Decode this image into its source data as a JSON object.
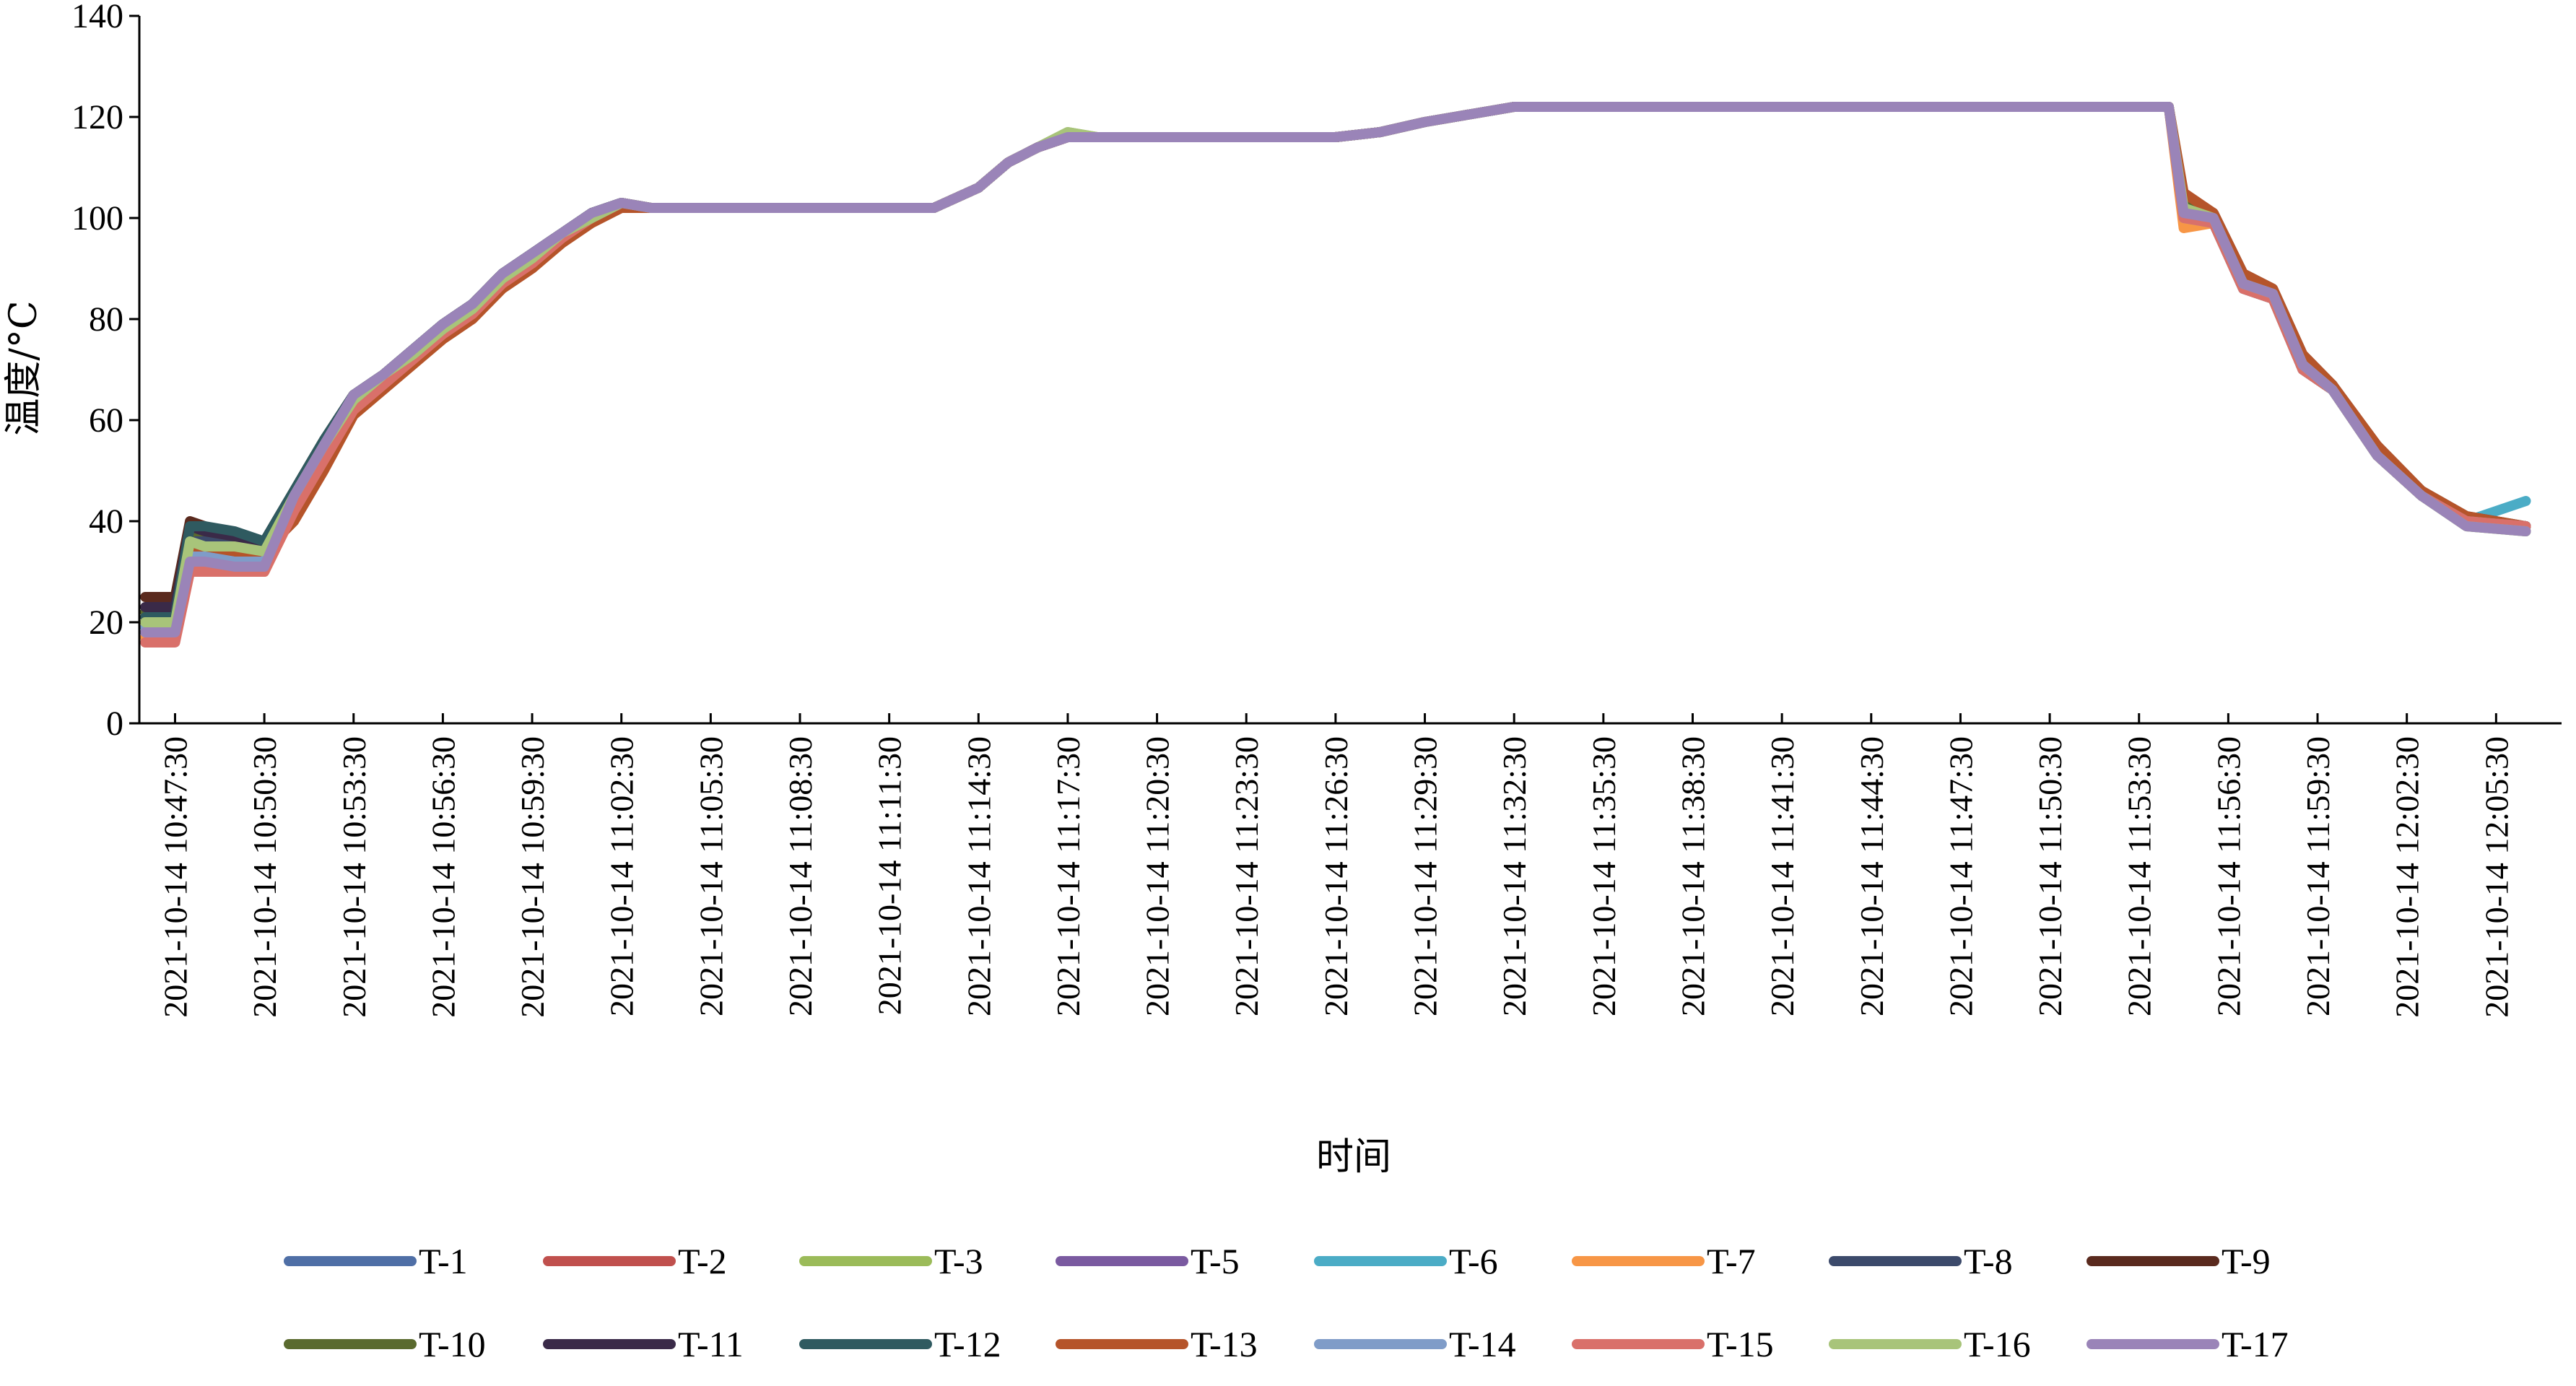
{
  "chart_data": {
    "type": "line",
    "title": "",
    "xlabel": "时间",
    "ylabel": "温度/°C",
    "ylim": [
      0,
      140
    ],
    "yticks": [
      0,
      20,
      40,
      60,
      80,
      100,
      120,
      140
    ],
    "xlim_minutes_from_first_label": [
      -1.2,
      80.2
    ],
    "grid": false,
    "legend_placement": "bottom",
    "x_tick_labels": [
      "2021-10-14 10:47:30",
      "2021-10-14 10:50:30",
      "2021-10-14 10:53:30",
      "2021-10-14 10:56:30",
      "2021-10-14 10:59:30",
      "2021-10-14 11:02:30",
      "2021-10-14 11:05:30",
      "2021-10-14 11:08:30",
      "2021-10-14 11:11:30",
      "2021-10-14 11:14:30",
      "2021-10-14 11:17:30",
      "2021-10-14 11:20:30",
      "2021-10-14 11:23:30",
      "2021-10-14 11:26:30",
      "2021-10-14 11:29:30",
      "2021-10-14 11:32:30",
      "2021-10-14 11:35:30",
      "2021-10-14 11:38:30",
      "2021-10-14 11:41:30",
      "2021-10-14 11:44:30",
      "2021-10-14 11:47:30",
      "2021-10-14 11:50:30",
      "2021-10-14 11:53:30",
      "2021-10-14 11:56:30",
      "2021-10-14 11:59:30",
      "2021-10-14 12:02:30",
      "2021-10-14 12:05:30"
    ],
    "x": [
      "10:46:30",
      "10:47:30",
      "10:48:00",
      "10:48:30",
      "10:49:30",
      "10:50:30",
      "10:51:30",
      "10:52:30",
      "10:53:30",
      "10:54:30",
      "10:55:30",
      "10:56:30",
      "10:57:30",
      "10:58:30",
      "10:59:30",
      "11:00:30",
      "11:01:30",
      "11:02:30",
      "11:03:30",
      "11:05:30",
      "11:08:30",
      "11:11:30",
      "11:13:00",
      "11:14:30",
      "11:15:30",
      "11:16:30",
      "11:17:30",
      "11:18:30",
      "11:20:30",
      "11:23:30",
      "11:26:30",
      "11:28:00",
      "11:29:30",
      "11:30:30",
      "11:32:30",
      "11:35:30",
      "11:38:30",
      "11:41:30",
      "11:44:30",
      "11:47:30",
      "11:50:30",
      "11:52:30",
      "11:53:30",
      "11:54:30",
      "11:55:00",
      "11:56:00",
      "11:57:00",
      "11:58:00",
      "11:59:00",
      "12:00:00",
      "12:01:30",
      "12:03:00",
      "12:04:30",
      "12:06:30"
    ],
    "series": [
      {
        "name": "T-1",
        "color": "#4f6fa6",
        "values": [
          19,
          19,
          31,
          32,
          32,
          32,
          45,
          55,
          64,
          69,
          73,
          78,
          82,
          88,
          92,
          97,
          100,
          103,
          102,
          102,
          102,
          102,
          102,
          106,
          111,
          114,
          116,
          116,
          116,
          116,
          116,
          117,
          119,
          120,
          122,
          122,
          122,
          122,
          122,
          122,
          122,
          122,
          122,
          122,
          100,
          99,
          86,
          84,
          70,
          66,
          53,
          45,
          40,
          39
        ]
      },
      {
        "name": "T-2",
        "color": "#c0504d",
        "values": [
          17,
          17,
          30,
          30,
          30,
          30,
          42,
          52,
          62,
          67,
          72,
          77,
          81,
          87,
          91,
          96,
          100,
          103,
          102,
          102,
          102,
          102,
          102,
          106,
          111,
          114,
          116,
          116,
          116,
          116,
          116,
          117,
          119,
          120,
          122,
          122,
          122,
          122,
          122,
          122,
          122,
          122,
          122,
          122,
          101,
          99,
          87,
          84,
          71,
          66,
          54,
          45,
          40,
          39
        ]
      },
      {
        "name": "T-3",
        "color": "#9bbb59",
        "values": [
          20,
          20,
          36,
          35,
          34,
          33,
          45,
          55,
          64,
          69,
          73,
          78,
          82,
          88,
          92,
          97,
          100,
          103,
          102,
          102,
          102,
          102,
          102,
          106,
          111,
          114,
          117,
          116,
          116,
          116,
          116,
          117,
          119,
          120,
          122,
          122,
          122,
          122,
          122,
          122,
          122,
          122,
          122,
          122,
          102,
          100,
          87,
          85,
          71,
          66,
          53,
          45,
          39,
          38
        ]
      },
      {
        "name": "T-5",
        "color": "#7a5aa0",
        "values": [
          18,
          18,
          33,
          33,
          32,
          32,
          44,
          54,
          64,
          68,
          73,
          78,
          82,
          88,
          92,
          97,
          100,
          103,
          102,
          102,
          102,
          102,
          102,
          106,
          111,
          114,
          116,
          116,
          116,
          116,
          116,
          117,
          119,
          120,
          122,
          122,
          122,
          122,
          122,
          122,
          122,
          122,
          122,
          122,
          100,
          99,
          86,
          84,
          70,
          66,
          53,
          45,
          40,
          39
        ]
      },
      {
        "name": "T-6",
        "color": "#4bacc6",
        "values": [
          19,
          19,
          34,
          34,
          33,
          32,
          44,
          54,
          64,
          68,
          73,
          78,
          82,
          88,
          92,
          97,
          100,
          103,
          102,
          102,
          102,
          102,
          102,
          106,
          111,
          114,
          116,
          116,
          116,
          116,
          116,
          117,
          119,
          120,
          122,
          122,
          122,
          122,
          122,
          122,
          122,
          122,
          122,
          122,
          100,
          99,
          86,
          84,
          70,
          66,
          53,
          45,
          40,
          44
        ]
      },
      {
        "name": "T-7",
        "color": "#f79646",
        "values": [
          17,
          17,
          31,
          31,
          30,
          30,
          42,
          52,
          62,
          67,
          72,
          77,
          81,
          87,
          91,
          96,
          100,
          103,
          102,
          102,
          102,
          102,
          102,
          106,
          111,
          114,
          116,
          116,
          116,
          116,
          116,
          117,
          119,
          120,
          122,
          122,
          122,
          122,
          122,
          122,
          122,
          122,
          122,
          122,
          98,
          99,
          86,
          84,
          70,
          66,
          53,
          45,
          40,
          39
        ]
      },
      {
        "name": "T-8",
        "color": "#3c4a6b",
        "values": [
          22,
          22,
          38,
          37,
          36,
          35,
          46,
          56,
          65,
          69,
          74,
          79,
          83,
          89,
          93,
          97,
          101,
          103,
          102,
          102,
          102,
          102,
          102,
          106,
          111,
          114,
          116,
          116,
          116,
          116,
          116,
          117,
          119,
          120,
          122,
          122,
          122,
          122,
          122,
          122,
          122,
          122,
          122,
          122,
          101,
          100,
          87,
          85,
          71,
          67,
          54,
          46,
          40,
          39
        ]
      },
      {
        "name": "T-9",
        "color": "#5a2a1e",
        "values": [
          25,
          25,
          40,
          39,
          37,
          36,
          46,
          56,
          65,
          69,
          74,
          79,
          83,
          89,
          93,
          97,
          101,
          103,
          102,
          102,
          102,
          102,
          102,
          106,
          111,
          114,
          116,
          116,
          116,
          116,
          116,
          117,
          119,
          120,
          122,
          122,
          122,
          122,
          122,
          122,
          122,
          122,
          122,
          122,
          104,
          101,
          89,
          86,
          73,
          67,
          55,
          46,
          41,
          39
        ]
      },
      {
        "name": "T-10",
        "color": "#5a6a2e",
        "values": [
          22,
          22,
          38,
          38,
          37,
          36,
          46,
          56,
          65,
          69,
          74,
          79,
          83,
          89,
          93,
          97,
          101,
          103,
          102,
          102,
          102,
          102,
          102,
          106,
          111,
          114,
          116,
          116,
          116,
          116,
          116,
          117,
          119,
          120,
          122,
          122,
          122,
          122,
          122,
          122,
          122,
          122,
          122,
          122,
          103,
          100,
          88,
          85,
          72,
          67,
          54,
          46,
          40,
          39
        ]
      },
      {
        "name": "T-11",
        "color": "#3a2a48",
        "values": [
          23,
          23,
          39,
          38,
          37,
          36,
          46,
          56,
          65,
          69,
          74,
          79,
          83,
          89,
          93,
          97,
          101,
          103,
          102,
          102,
          102,
          102,
          102,
          106,
          111,
          114,
          116,
          116,
          116,
          116,
          116,
          117,
          119,
          120,
          122,
          122,
          122,
          122,
          122,
          122,
          122,
          122,
          122,
          122,
          102,
          100,
          88,
          85,
          72,
          67,
          54,
          46,
          40,
          39
        ]
      },
      {
        "name": "T-12",
        "color": "#2f5a60",
        "values": [
          21,
          21,
          39,
          39,
          38,
          36,
          46,
          56,
          65,
          69,
          74,
          79,
          83,
          89,
          93,
          97,
          101,
          103,
          102,
          102,
          102,
          102,
          102,
          106,
          111,
          114,
          116,
          116,
          116,
          116,
          116,
          117,
          119,
          120,
          122,
          122,
          122,
          122,
          122,
          122,
          122,
          122,
          122,
          122,
          102,
          100,
          88,
          85,
          72,
          67,
          54,
          46,
          40,
          39
        ]
      },
      {
        "name": "T-13",
        "color": "#b5542a",
        "values": [
          20,
          20,
          35,
          35,
          34,
          34,
          40,
          50,
          61,
          66,
          71,
          76,
          80,
          86,
          90,
          95,
          99,
          102,
          102,
          102,
          102,
          102,
          102,
          106,
          111,
          114,
          116,
          116,
          116,
          116,
          116,
          117,
          119,
          120,
          122,
          122,
          122,
          122,
          122,
          122,
          122,
          122,
          122,
          122,
          105,
          101,
          89,
          86,
          73,
          67,
          55,
          46,
          41,
          39
        ]
      },
      {
        "name": "T-14",
        "color": "#7f9cc8",
        "values": [
          19,
          19,
          33,
          33,
          32,
          32,
          44,
          54,
          64,
          68,
          73,
          78,
          82,
          88,
          92,
          97,
          100,
          103,
          102,
          102,
          102,
          102,
          102,
          106,
          111,
          114,
          116,
          116,
          116,
          116,
          116,
          117,
          119,
          120,
          122,
          122,
          122,
          122,
          122,
          122,
          122,
          122,
          122,
          122,
          100,
          99,
          86,
          84,
          70,
          66,
          53,
          45,
          40,
          39
        ]
      },
      {
        "name": "T-15",
        "color": "#d9706a",
        "values": [
          16,
          16,
          30,
          30,
          30,
          30,
          42,
          52,
          62,
          67,
          72,
          77,
          81,
          87,
          91,
          96,
          100,
          103,
          102,
          102,
          102,
          102,
          102,
          106,
          111,
          114,
          116,
          116,
          116,
          116,
          116,
          117,
          119,
          120,
          122,
          122,
          122,
          122,
          122,
          122,
          122,
          122,
          122,
          122,
          100,
          99,
          86,
          84,
          70,
          66,
          53,
          45,
          40,
          39
        ]
      },
      {
        "name": "T-16",
        "color": "#a8c47a",
        "values": [
          20,
          20,
          36,
          35,
          35,
          34,
          45,
          55,
          64,
          69,
          73,
          78,
          82,
          88,
          92,
          97,
          100,
          103,
          102,
          102,
          102,
          102,
          102,
          106,
          111,
          114,
          117,
          116,
          116,
          116,
          116,
          117,
          119,
          120,
          122,
          122,
          122,
          122,
          122,
          122,
          122,
          122,
          122,
          122,
          102,
          100,
          87,
          85,
          71,
          66,
          53,
          45,
          39,
          38
        ]
      },
      {
        "name": "T-17",
        "color": "#9a84b8",
        "values": [
          18,
          18,
          32,
          32,
          31,
          31,
          45,
          55,
          65,
          69,
          74,
          79,
          83,
          89,
          93,
          97,
          101,
          103,
          102,
          102,
          102,
          102,
          102,
          106,
          111,
          114,
          116,
          116,
          116,
          116,
          116,
          117,
          119,
          120,
          122,
          122,
          122,
          122,
          122,
          122,
          122,
          122,
          122,
          122,
          101,
          100,
          87,
          85,
          71,
          66,
          53,
          45,
          39,
          38
        ]
      }
    ]
  }
}
